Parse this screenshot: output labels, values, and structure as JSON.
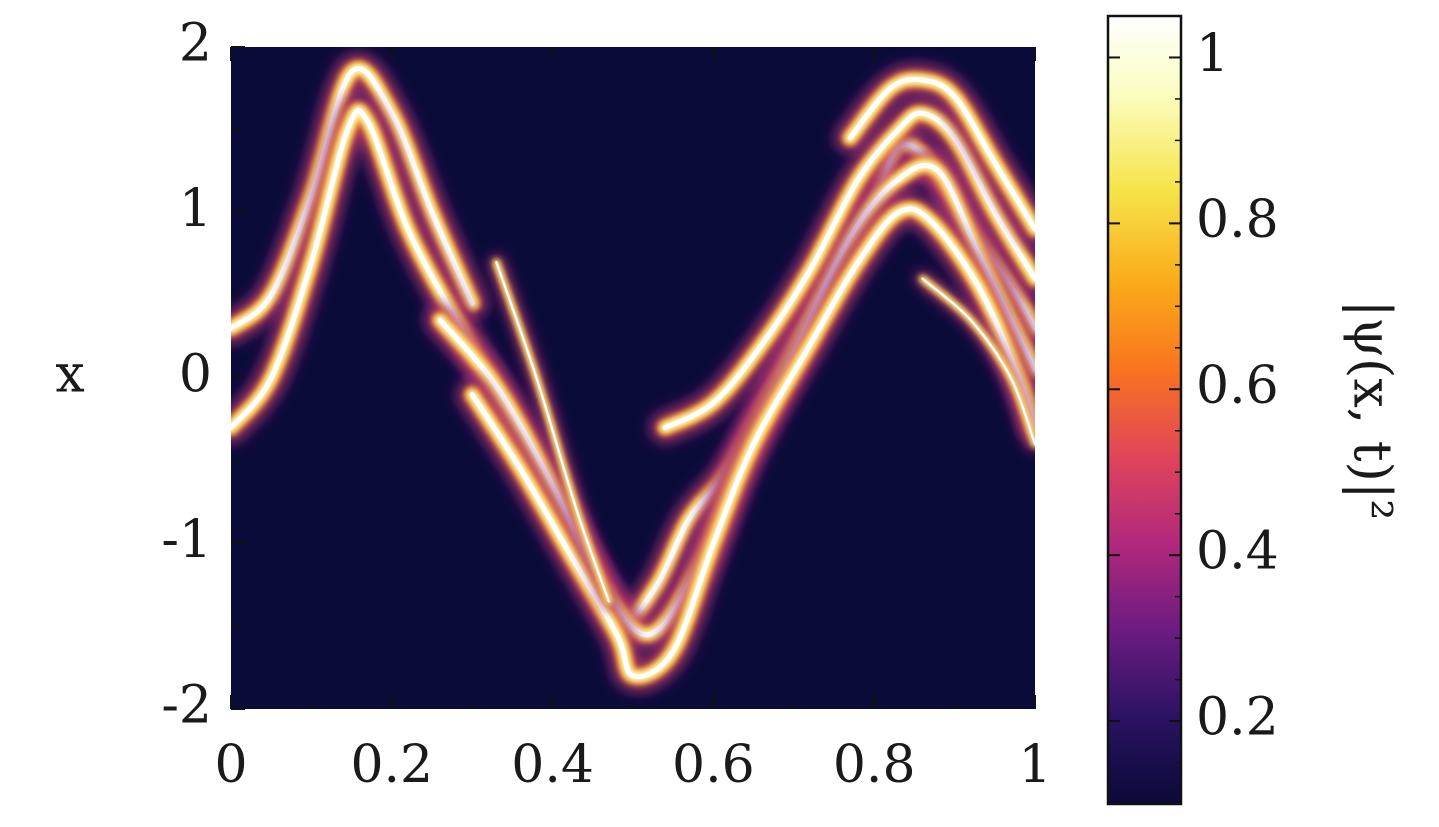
{
  "chart_data": {
    "type": "heatmap",
    "title": "",
    "xlabel": "",
    "ylabel": "x",
    "xlim": [
      0,
      1
    ],
    "ylim": [
      -2,
      2
    ],
    "x_ticks": [
      0,
      0.2,
      0.4,
      0.6,
      0.8,
      1
    ],
    "x_tick_labels": [
      "0",
      "0.2",
      "0.4",
      "0.6",
      "0.8",
      "1"
    ],
    "y_ticks": [
      2,
      1,
      0,
      -1,
      -2
    ],
    "y_tick_labels": [
      "2",
      "1",
      "0",
      "-1",
      "-2"
    ],
    "colorbar": {
      "label": "|ψ(x, t)|²",
      "range": [
        0.1,
        1.05
      ],
      "ticks": [
        1,
        0.8,
        0.6,
        0.4,
        0.2
      ],
      "tick_labels": [
        "1",
        "0.8",
        "0.6",
        "0.4",
        "0.2"
      ],
      "colormap": "inferno",
      "colors": [
        "#0a0a38",
        "#2b1262",
        "#6b1c80",
        "#b1287d",
        "#e0455a",
        "#f8731f",
        "#fbaa1a",
        "#f6e44a",
        "#fcfdbf",
        "#ffffff"
      ]
    },
    "background_color": "#0b0b3a",
    "series": [
      {
        "points": [
          [
            0,
            0.3
          ],
          [
            0.05,
            0.5
          ],
          [
            0.1,
            1.1
          ],
          [
            0.15,
            1.85
          ],
          [
            0.2,
            1.6
          ],
          [
            0.25,
            1.0
          ],
          [
            0.3,
            0.45
          ]
        ]
      },
      {
        "points": [
          [
            0,
            -0.3
          ],
          [
            0.05,
            0.0
          ],
          [
            0.1,
            0.7
          ],
          [
            0.145,
            1.5
          ],
          [
            0.17,
            1.55
          ],
          [
            0.22,
            0.9
          ],
          [
            0.28,
            0.35
          ],
          [
            0.32,
            0.0
          ],
          [
            0.38,
            -0.55
          ],
          [
            0.45,
            -1.15
          ],
          [
            0.49,
            -1.45
          ],
          [
            0.53,
            -1.25
          ],
          [
            0.57,
            -0.85
          ],
          [
            0.62,
            -0.55
          ],
          [
            0.68,
            0.0
          ],
          [
            0.74,
            0.55
          ],
          [
            0.8,
            1.05
          ],
          [
            0.83,
            1.4
          ],
          [
            0.87,
            1.3
          ],
          [
            0.92,
            0.9
          ],
          [
            0.97,
            0.55
          ],
          [
            1.0,
            0.3
          ]
        ]
      },
      {
        "points": [
          [
            0.26,
            0.35
          ],
          [
            0.33,
            -0.05
          ],
          [
            0.4,
            -0.65
          ],
          [
            0.46,
            -1.25
          ],
          [
            0.52,
            -1.55
          ],
          [
            0.58,
            -1.15
          ],
          [
            0.63,
            -0.55
          ],
          [
            0.7,
            0.15
          ],
          [
            0.77,
            0.85
          ],
          [
            0.83,
            1.2
          ],
          [
            0.88,
            1.25
          ],
          [
            0.93,
            0.75
          ],
          [
            0.98,
            0.25
          ],
          [
            1.0,
            0.05
          ]
        ]
      },
      {
        "points": [
          [
            0.3,
            -0.1
          ],
          [
            0.36,
            -0.55
          ],
          [
            0.42,
            -1.05
          ],
          [
            0.48,
            -1.55
          ],
          [
            0.5,
            -1.8
          ],
          [
            0.55,
            -1.65
          ],
          [
            0.6,
            -1.0
          ],
          [
            0.65,
            -0.4
          ],
          [
            0.72,
            0.2
          ],
          [
            0.78,
            0.7
          ],
          [
            0.83,
            1.0
          ],
          [
            0.87,
            0.95
          ],
          [
            0.93,
            0.55
          ],
          [
            0.98,
            0.0
          ],
          [
            1.0,
            -0.3
          ]
        ]
      },
      {
        "points": [
          [
            0.54,
            -0.3
          ],
          [
            0.6,
            -0.15
          ],
          [
            0.66,
            0.2
          ],
          [
            0.72,
            0.65
          ],
          [
            0.78,
            1.2
          ],
          [
            0.83,
            1.5
          ],
          [
            0.86,
            1.6
          ],
          [
            0.9,
            1.45
          ],
          [
            0.95,
            1.0
          ],
          [
            1.0,
            0.6
          ]
        ]
      },
      {
        "points": [
          [
            0.77,
            1.45
          ],
          [
            0.82,
            1.75
          ],
          [
            0.86,
            1.8
          ],
          [
            0.9,
            1.7
          ],
          [
            0.95,
            1.3
          ],
          [
            1.0,
            0.9
          ]
        ]
      },
      {
        "points": [
          [
            0.33,
            0.7
          ],
          [
            0.38,
            0.0
          ],
          [
            0.43,
            -0.8
          ],
          [
            0.47,
            -1.35
          ]
        ]
      },
      {
        "points": [
          [
            0.86,
            0.6
          ],
          [
            0.92,
            0.35
          ],
          [
            0.97,
            0.0
          ],
          [
            1.0,
            -0.4
          ]
        ]
      }
    ]
  }
}
